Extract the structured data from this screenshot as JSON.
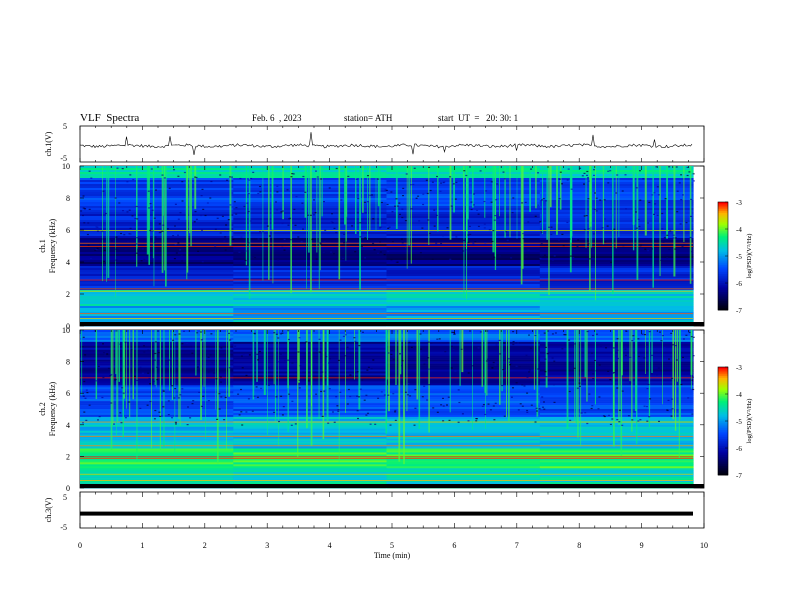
{
  "header": {
    "title": "VLF  Spectra",
    "date": "Feb. 6  , 2023",
    "station": "station= ATH",
    "start": "start  UT  =   20: 30: 1"
  },
  "colors": {
    "background": "#ffffff",
    "trace": "#000000",
    "spectrogram_low": "#000010",
    "spectrogram_mid": "#0040ff",
    "spectrogram_high": "#00ff80",
    "spectrogram_peak": "#ff0000"
  },
  "chart_data": [
    {
      "type": "line",
      "id": "ch1-waveform",
      "ylabel": "ch.1(V)",
      "yticks": [
        "5",
        "-5"
      ],
      "ylim": [
        -5,
        5
      ],
      "xlim": [
        0,
        10
      ],
      "description_of_series": "noise around -0.5 V with occasional spikes",
      "baseline": -0.5,
      "noise_amplitude": 0.4
    },
    {
      "type": "heatmap",
      "id": "ch1-spectrogram",
      "ylabel": "ch.1\nFrequency  (kHz)",
      "yticks": [
        "0",
        "2",
        "4",
        "6",
        "8",
        "10"
      ],
      "ylim": [
        0,
        10
      ],
      "xlim": [
        0,
        10
      ],
      "colorbar": {
        "label": "log(PSD)(V²/Hz)",
        "ticks": [
          "-3",
          "-4",
          "-5",
          "-6",
          "-7"
        ],
        "range": [
          -7,
          -3
        ]
      }
    },
    {
      "type": "heatmap",
      "id": "ch2-spectrogram",
      "ylabel": "ch.2\nFrequency  (kHz)",
      "yticks": [
        "0",
        "2",
        "4",
        "6",
        "8",
        "10"
      ],
      "ylim": [
        0,
        10
      ],
      "xlim": [
        0,
        10
      ],
      "colorbar": {
        "label": "log(PSD)(V²/Hz)",
        "ticks": [
          "-3",
          "-4",
          "-5",
          "-6",
          "-7"
        ],
        "range": [
          -7,
          -3
        ]
      }
    },
    {
      "type": "line",
      "id": "ch3-waveform",
      "ylabel": "ch.3(V)",
      "yticks": [
        "5",
        "-5"
      ],
      "ylim": [
        -5,
        5
      ],
      "xlim": [
        0,
        10
      ],
      "baseline": -1,
      "xlabel": "Time  (min)",
      "xticks": [
        "0",
        "1",
        "2",
        "3",
        "4",
        "5",
        "6",
        "7",
        "8",
        "9",
        "10"
      ]
    }
  ]
}
